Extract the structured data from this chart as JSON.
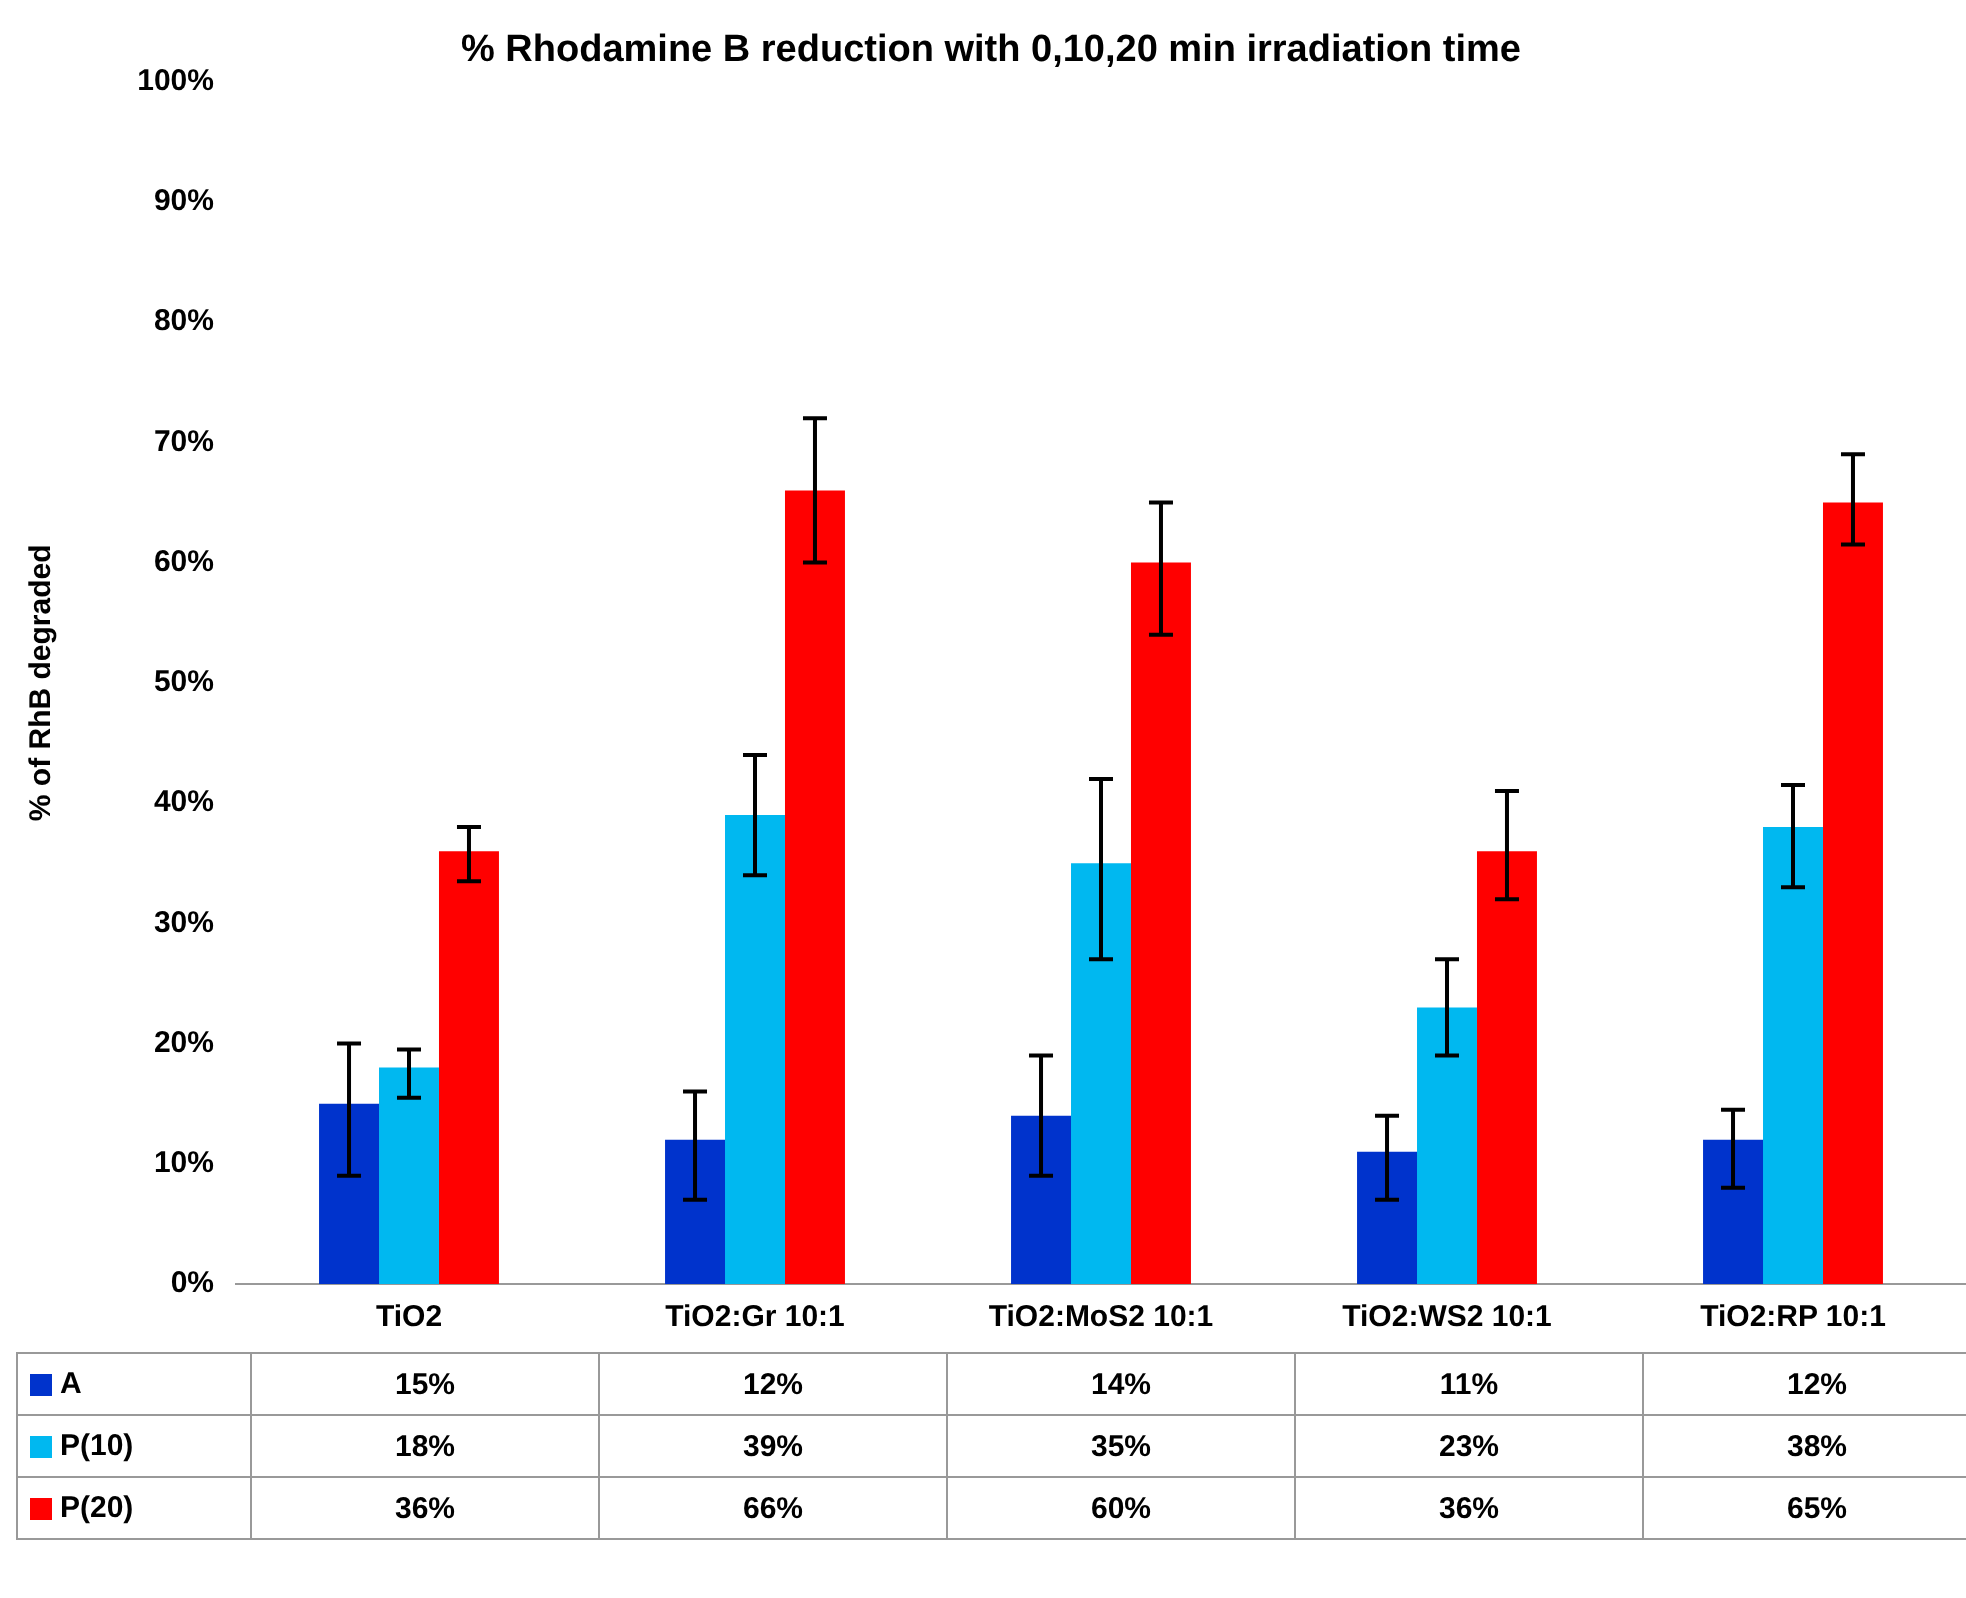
{
  "chart_data": {
    "type": "bar",
    "title": "% Rhodamine B reduction with 0,10,20 min irradiation time",
    "ylabel": "% of RhB degraded",
    "categories": [
      "TiO2",
      "TiO2:Gr 10:1",
      "TiO2:MoS2 10:1",
      "TiO2:WS2 10:1",
      "TiO2:RP 10:1"
    ],
    "series": [
      {
        "name": "A",
        "color": "#0033cc",
        "values": [
          15,
          12,
          14,
          11,
          12
        ],
        "value_labels": [
          "15%",
          "12%",
          "14%",
          "11%",
          "12%"
        ],
        "errors": [
          [
            9,
            20
          ],
          [
            7,
            16
          ],
          [
            9,
            19
          ],
          [
            7,
            14
          ],
          [
            8,
            14.5
          ]
        ]
      },
      {
        "name": "P(10)",
        "color": "#00b8f0",
        "values": [
          18,
          39,
          35,
          23,
          38
        ],
        "value_labels": [
          "18%",
          "39%",
          "35%",
          "23%",
          "38%"
        ],
        "errors": [
          [
            15.5,
            19.5
          ],
          [
            34,
            44
          ],
          [
            27,
            42
          ],
          [
            19,
            27
          ],
          [
            33,
            41.5
          ]
        ]
      },
      {
        "name": "P(20)",
        "color": "#ff0000",
        "values": [
          36,
          66,
          60,
          36,
          65
        ],
        "value_labels": [
          "36%",
          "66%",
          "60%",
          "36%",
          "65%"
        ],
        "errors": [
          [
            33.5,
            38
          ],
          [
            60,
            72
          ],
          [
            54,
            65
          ],
          [
            32,
            41
          ],
          [
            61.5,
            69
          ]
        ]
      }
    ],
    "ylim": [
      0,
      100
    ],
    "yticks": [
      {
        "value": 0,
        "label": "0%"
      },
      {
        "value": 10,
        "label": "10%"
      },
      {
        "value": 20,
        "label": "20%"
      },
      {
        "value": 30,
        "label": "30%"
      },
      {
        "value": 40,
        "label": "40%"
      },
      {
        "value": 50,
        "label": "50%"
      },
      {
        "value": 60,
        "label": "60%"
      },
      {
        "value": 70,
        "label": "70%"
      },
      {
        "value": 80,
        "label": "80%"
      },
      {
        "value": 90,
        "label": "90%"
      },
      {
        "value": 100,
        "label": "100%"
      }
    ],
    "grid": false,
    "legend": "bottom left"
  }
}
